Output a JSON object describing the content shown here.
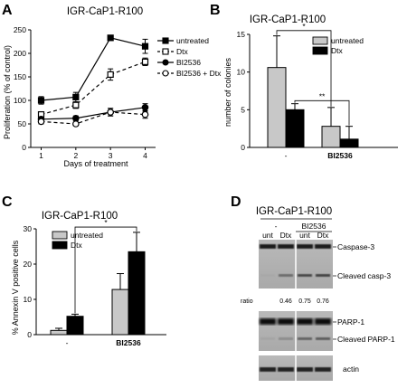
{
  "chart_data": [
    {
      "panel": "A",
      "type": "line",
      "title": "IGR-CaP1-R100",
      "xlabel": "Days of treatment",
      "ylabel": "Proliferation (% of control)",
      "x": [
        1,
        2,
        3,
        4
      ],
      "xlim": [
        0.7,
        4.3
      ],
      "ylim": [
        0,
        250
      ],
      "yticks": [
        0,
        50,
        100,
        150,
        200,
        250
      ],
      "series": [
        {
          "name": "untreated",
          "values": [
            100,
            107,
            233,
            215
          ],
          "errors": [
            8,
            10,
            5,
            15
          ],
          "marker": "filled-square",
          "line": "solid"
        },
        {
          "name": "Dtx",
          "values": [
            70,
            90,
            155,
            182
          ],
          "errors": [
            6,
            7,
            12,
            8
          ],
          "marker": "open-square",
          "line": "dashed"
        },
        {
          "name": "BI2536",
          "values": [
            60,
            62,
            75,
            85
          ],
          "errors": [
            5,
            5,
            8,
            8
          ],
          "marker": "filled-circle",
          "line": "solid"
        },
        {
          "name": "BI2536 + Dtx",
          "values": [
            55,
            50,
            75,
            70
          ],
          "errors": [
            5,
            4,
            8,
            8
          ],
          "marker": "open-circle",
          "line": "dashed"
        }
      ],
      "legend": "right"
    },
    {
      "panel": "B",
      "type": "bar",
      "title": "IGR-CaP1-R100",
      "ylabel": "number of colonies",
      "categories": [
        "-",
        "BI2536"
      ],
      "ylim": [
        0,
        15
      ],
      "yticks": [
        0,
        5,
        10,
        15
      ],
      "series": [
        {
          "name": "untreated",
          "values": [
            10.6,
            2.8
          ],
          "errors": [
            4.2,
            2.5
          ],
          "color": "#c8c8c8"
        },
        {
          "name": "Dtx",
          "values": [
            5.0,
            1.1
          ],
          "errors": [
            0.8,
            1.7
          ],
          "color": "#000000"
        }
      ],
      "significance": [
        {
          "label": "*",
          "from": "-/untreated",
          "to": "BI2536/untreated",
          "y": 15.5
        },
        {
          "label": "**",
          "from": "-/Dtx",
          "to": "BI2536/Dtx",
          "y": 6.2
        }
      ],
      "legend": "top-right"
    },
    {
      "panel": "C",
      "type": "bar",
      "title": "IGR-CaP1-R100",
      "ylabel": "%  Annexin V positive cells",
      "categories": [
        "-",
        "BI2536"
      ],
      "ylim": [
        0,
        30
      ],
      "yticks": [
        0,
        10,
        20,
        30
      ],
      "series": [
        {
          "name": "untreated",
          "values": [
            1.2,
            12.8
          ],
          "errors": [
            0.6,
            4.5
          ],
          "color": "#c8c8c8"
        },
        {
          "name": "Dtx",
          "values": [
            5.2,
            23.5
          ],
          "errors": [
            0.6,
            5.5
          ],
          "color": "#000000"
        }
      ],
      "significance": [
        {
          "label": "*",
          "from": "-/Dtx",
          "to": "BI2536/Dtx",
          "y": 30.5
        }
      ],
      "legend": "top-left"
    }
  ],
  "panel_labels": {
    "a": "A",
    "b": "B",
    "c": "C",
    "d": "D"
  },
  "western": {
    "title": "IGR-CaP1-R100",
    "treatment_minus": "-",
    "treatment_bi": "BI2536",
    "lanes": [
      "unt",
      "Dtx",
      "unt",
      "Dtx"
    ],
    "labels": {
      "caspase": "Caspase-3",
      "cleaved_casp": "Cleaved casp-3",
      "parp": "PARP-1",
      "cleaved_parp": "Cleaved PARP-1",
      "actin": "actin"
    },
    "ratio_label": "ratio",
    "ratios": [
      "0.46",
      "0.75",
      "0.76"
    ],
    "cleaved_casp_intensity": [
      0.05,
      0.45,
      0.7,
      0.75
    ],
    "cleaved_parp_intensity": [
      0.05,
      0.25,
      0.6,
      0.65
    ]
  }
}
